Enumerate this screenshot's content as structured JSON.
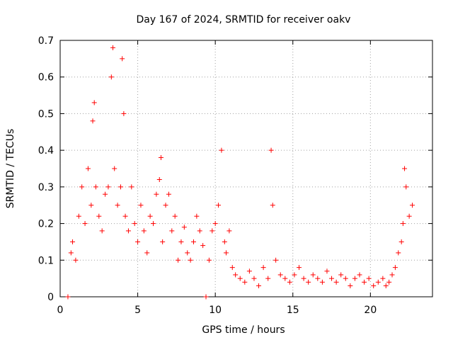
{
  "chart_data": {
    "type": "scatter",
    "title": "Day 167 of 2024, SRMTID for receiver oakv",
    "xlabel": "GPS time / hours",
    "ylabel": "SRMTID / TECUs",
    "xlim": [
      0,
      24
    ],
    "ylim": [
      0,
      0.7
    ],
    "xticks": [
      0,
      5,
      10,
      15,
      20
    ],
    "xtick_labels": [
      "0",
      "5",
      "10",
      "15",
      "20"
    ],
    "yticks": [
      0,
      0.1,
      0.2,
      0.3,
      0.4,
      0.5,
      0.6,
      0.7
    ],
    "ytick_labels": [
      "0",
      "0.1",
      "0.2",
      "0.3",
      "0.4",
      "0.5",
      "0.6",
      "0.7"
    ],
    "grid": true,
    "marker": "+",
    "series": [
      {
        "name": "SRMTID",
        "color": "#ff0000",
        "x": [
          0.5,
          0.7,
          0.8,
          1.0,
          1.2,
          1.4,
          1.6,
          1.8,
          2.0,
          2.1,
          2.2,
          2.3,
          2.5,
          2.7,
          2.9,
          3.1,
          3.3,
          3.4,
          3.5,
          3.7,
          3.9,
          4.0,
          4.1,
          4.2,
          4.4,
          4.6,
          4.8,
          5.0,
          5.2,
          5.4,
          5.6,
          5.8,
          6.0,
          6.2,
          6.4,
          6.5,
          6.6,
          6.8,
          7.0,
          7.2,
          7.4,
          7.6,
          7.8,
          8.0,
          8.2,
          8.4,
          8.6,
          8.8,
          9.0,
          9.2,
          9.4,
          9.6,
          9.8,
          10.0,
          10.2,
          10.4,
          10.6,
          10.7,
          10.9,
          11.1,
          11.3,
          11.6,
          11.9,
          12.2,
          12.5,
          12.8,
          13.1,
          13.4,
          13.6,
          13.7,
          13.9,
          14.2,
          14.5,
          14.8,
          15.1,
          15.4,
          15.7,
          16.0,
          16.3,
          16.6,
          16.9,
          17.2,
          17.5,
          17.8,
          18.1,
          18.4,
          18.7,
          19.0,
          19.3,
          19.6,
          19.9,
          20.2,
          20.5,
          20.8,
          21.0,
          21.2,
          21.4,
          21.6,
          21.8,
          22.0,
          22.1,
          22.2,
          22.3,
          22.5,
          22.7
        ],
        "y": [
          0.0,
          0.12,
          0.15,
          0.1,
          0.22,
          0.3,
          0.2,
          0.35,
          0.25,
          0.48,
          0.53,
          0.3,
          0.22,
          0.18,
          0.28,
          0.3,
          0.6,
          0.68,
          0.35,
          0.25,
          0.3,
          0.65,
          0.5,
          0.22,
          0.18,
          0.3,
          0.2,
          0.15,
          0.25,
          0.18,
          0.12,
          0.22,
          0.2,
          0.28,
          0.32,
          0.38,
          0.15,
          0.25,
          0.28,
          0.18,
          0.22,
          0.1,
          0.15,
          0.19,
          0.12,
          0.1,
          0.15,
          0.22,
          0.18,
          0.14,
          0.0,
          0.1,
          0.18,
          0.2,
          0.25,
          0.4,
          0.15,
          0.12,
          0.18,
          0.08,
          0.06,
          0.05,
          0.04,
          0.07,
          0.05,
          0.03,
          0.08,
          0.05,
          0.4,
          0.25,
          0.1,
          0.06,
          0.05,
          0.04,
          0.06,
          0.08,
          0.05,
          0.04,
          0.06,
          0.05,
          0.04,
          0.07,
          0.05,
          0.04,
          0.06,
          0.05,
          0.03,
          0.05,
          0.06,
          0.04,
          0.05,
          0.03,
          0.04,
          0.05,
          0.03,
          0.04,
          0.06,
          0.08,
          0.12,
          0.15,
          0.2,
          0.35,
          0.3,
          0.22,
          0.25
        ]
      }
    ]
  }
}
